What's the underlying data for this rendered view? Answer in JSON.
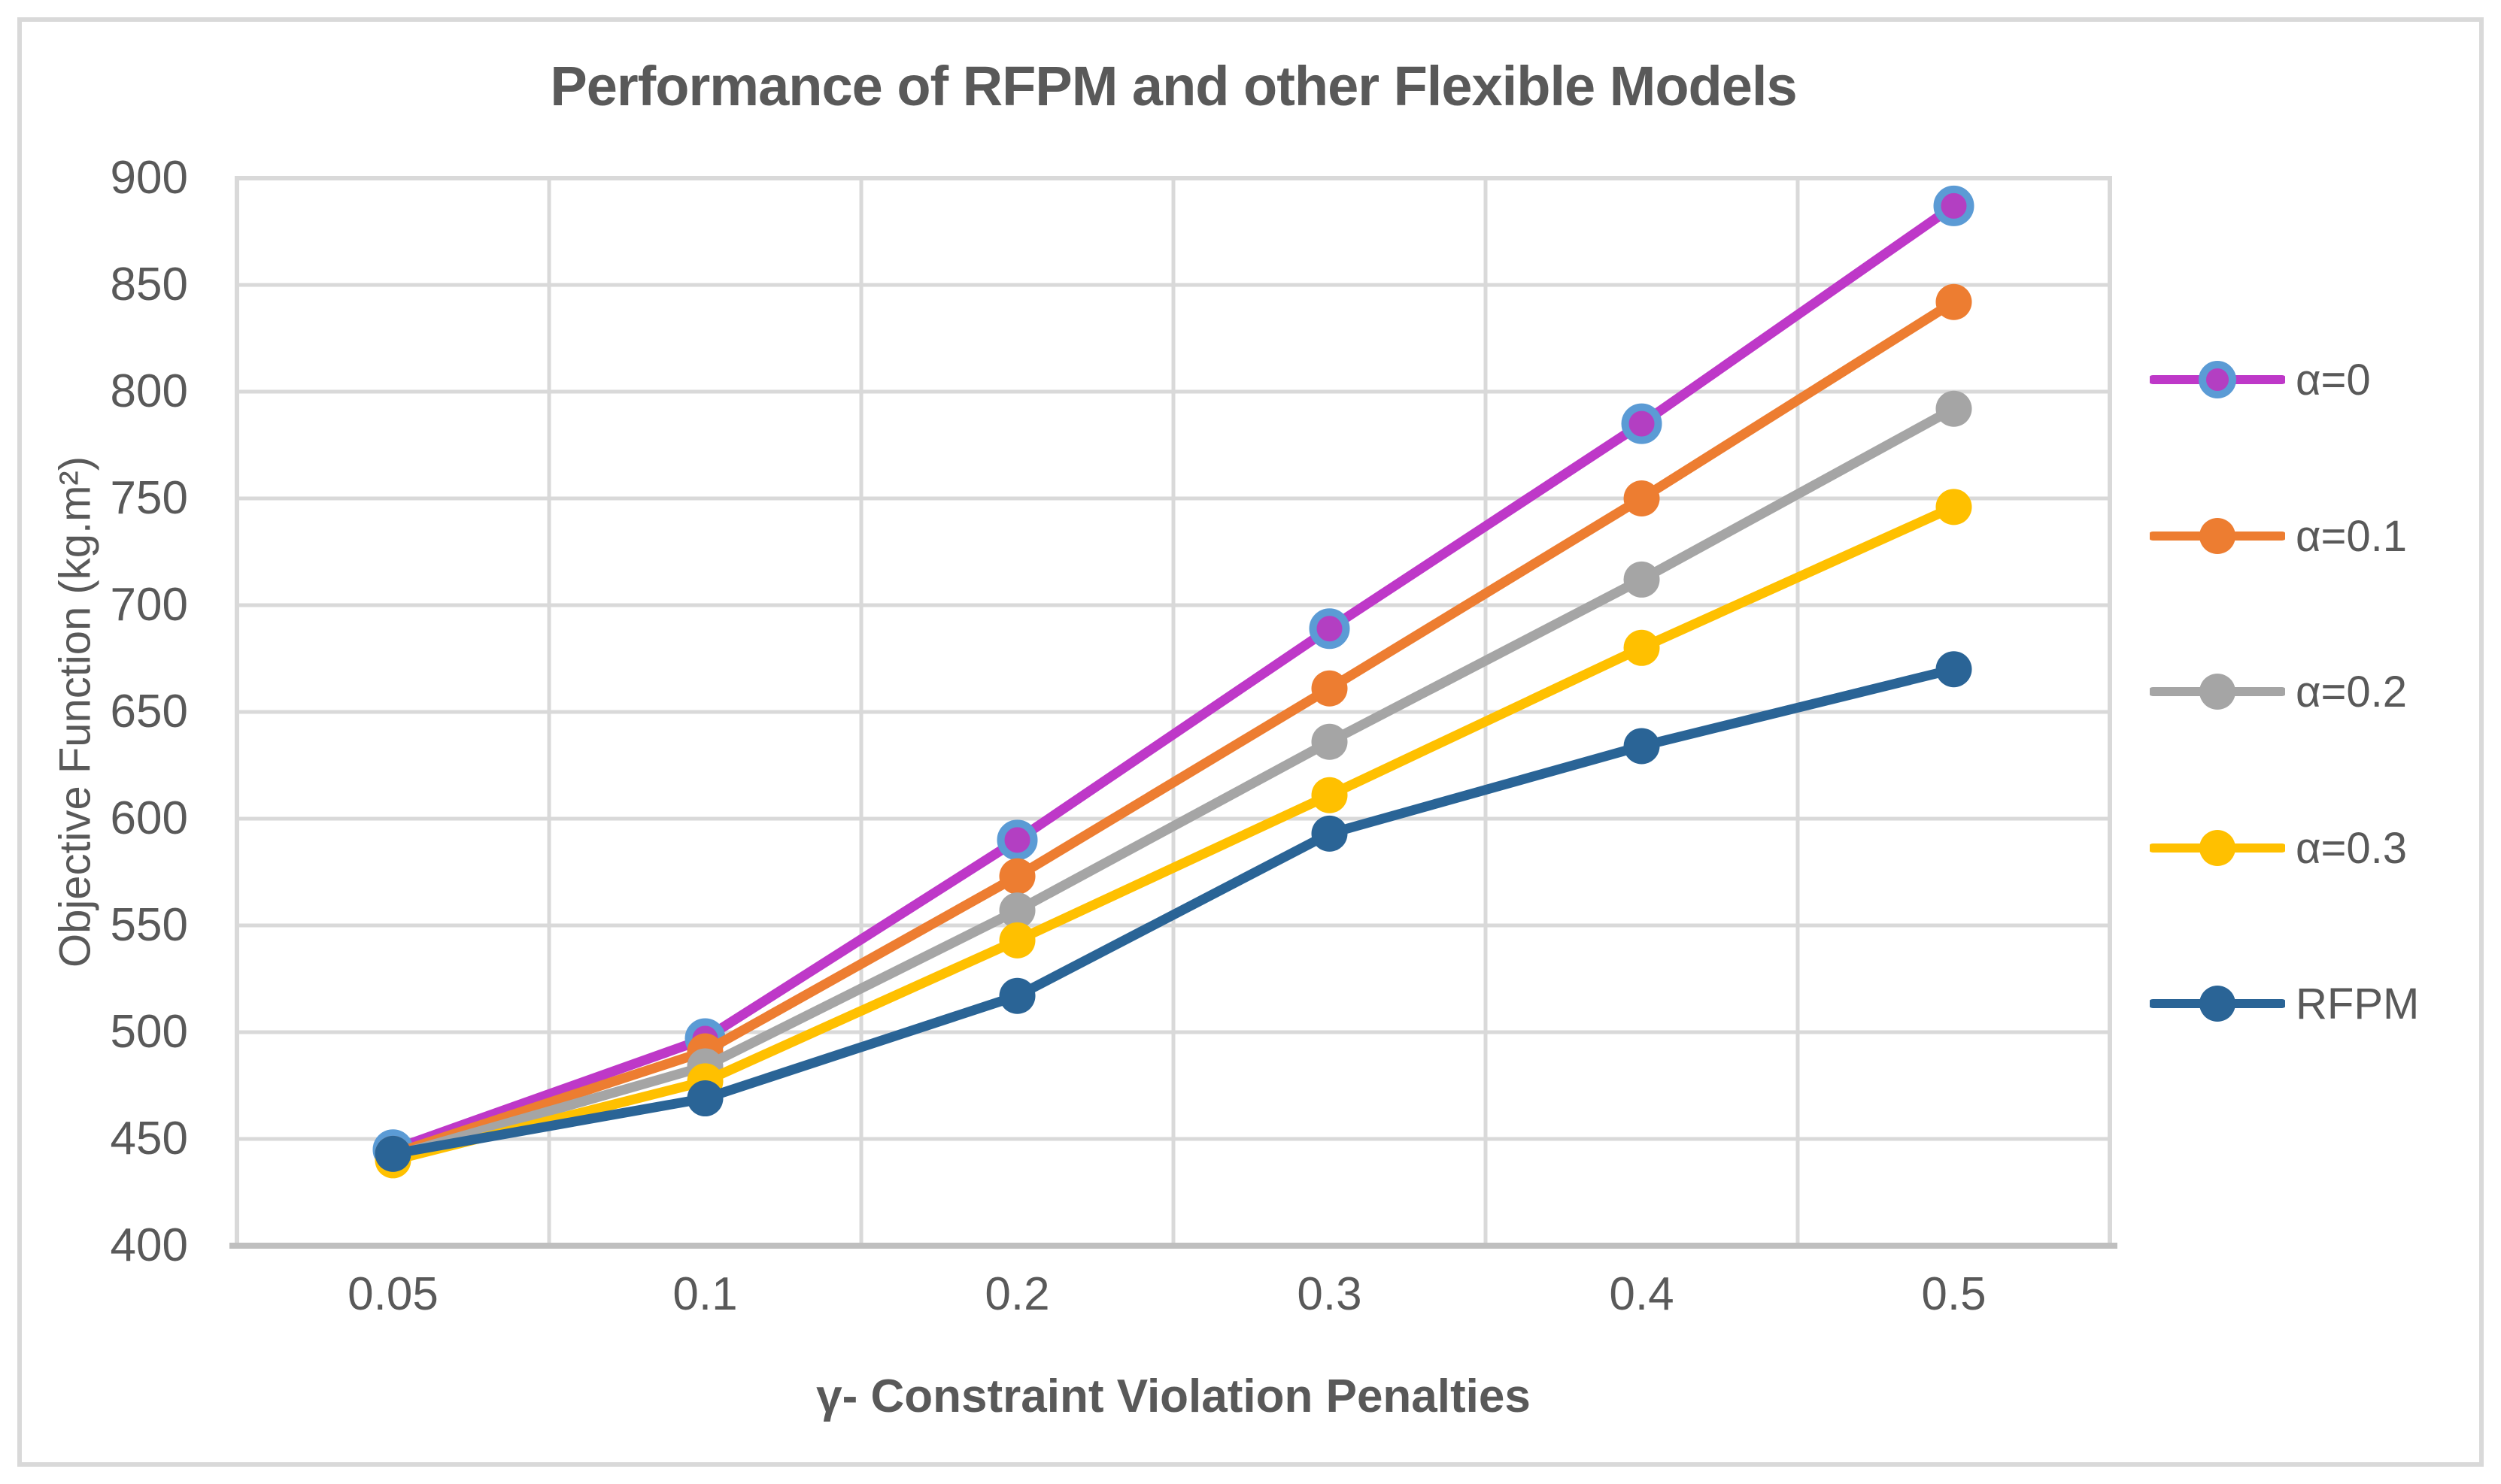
{
  "chart_data": {
    "type": "line",
    "title": "Performance of RFPM and other Flexible Models",
    "xlabel": "γ- Constraint Violation Penalties",
    "ylabel": "Objective Function (kg.m²)",
    "categories": [
      "0.05",
      "0.1",
      "0.2",
      "0.3",
      "0.4",
      "0.5"
    ],
    "y_ticks": [
      400,
      450,
      500,
      550,
      600,
      650,
      700,
      750,
      800,
      850,
      900
    ],
    "ylim": [
      400,
      900
    ],
    "grid": true,
    "legend_position": "right",
    "series": [
      {
        "name": "α=0",
        "color": "#BE38C8",
        "marker_fill": "#B33FC2",
        "marker_outline": "#5B9BD5",
        "values": [
          445,
          497,
          590,
          689,
          785,
          887
        ]
      },
      {
        "name": "α=0.1",
        "color": "#ED7D31",
        "marker_fill": "#ED7D31",
        "marker_outline": null,
        "values": [
          443,
          491,
          573,
          661,
          750,
          842
        ]
      },
      {
        "name": "α=0.2",
        "color": "#A5A5A5",
        "marker_fill": "#A5A5A5",
        "marker_outline": null,
        "values": [
          442,
          484,
          557,
          636,
          712,
          792
        ]
      },
      {
        "name": "α=0.3",
        "color": "#FFC000",
        "marker_fill": "#FFC000",
        "marker_outline": null,
        "values": [
          440,
          477,
          543,
          611,
          680,
          746
        ]
      },
      {
        "name": "RFPM",
        "color": "#2A6496",
        "marker_fill": "#2A6496",
        "marker_outline": null,
        "values": [
          443,
          469,
          517,
          593,
          634,
          670
        ]
      }
    ],
    "colors": {
      "text": "#595959",
      "gridline": "#D9D9D9",
      "axis_line": "#BFBFBF",
      "frame": "#D9D9D9",
      "background": "#FFFFFF"
    }
  }
}
